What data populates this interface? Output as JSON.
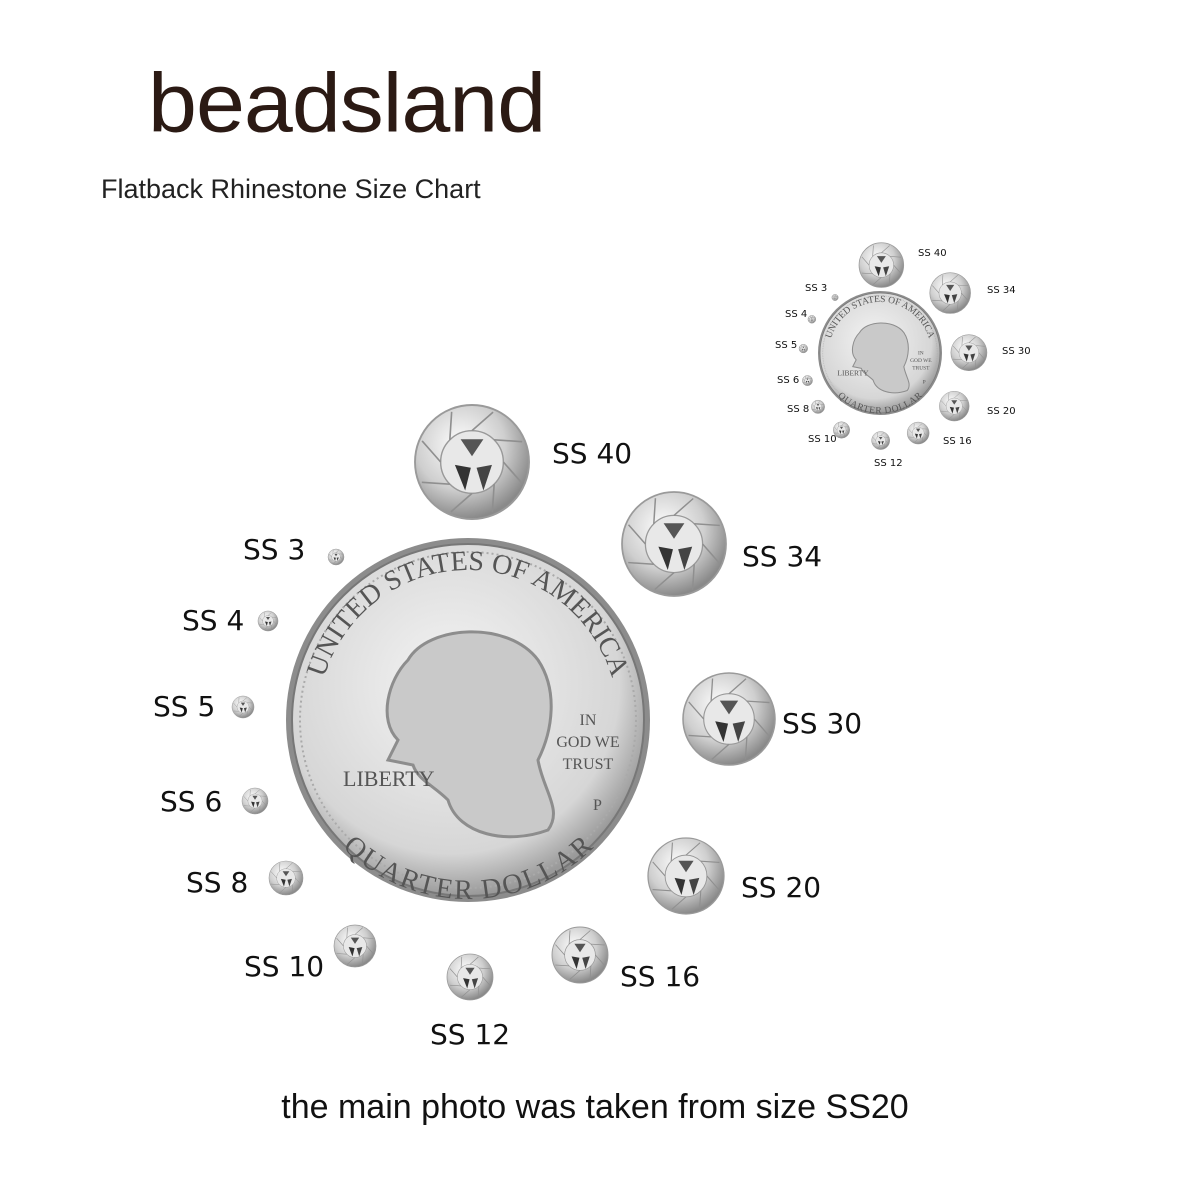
{
  "brand": {
    "logo": "beadsland"
  },
  "subtitle": "Flatback Rhinestone Size Chart",
  "caption": "the main photo was taken from size SS20",
  "coin": {
    "top_text": "UNITED STATES OF AMERICA",
    "left_text": "LIBERTY",
    "motto": [
      "IN",
      "GOD WE",
      "TRUST"
    ],
    "mint_mark": "P",
    "bottom_text": "QUARTER DOLLAR"
  },
  "sizes": [
    {
      "label": "SS 40"
    },
    {
      "label": "SS 34"
    },
    {
      "label": "SS 30"
    },
    {
      "label": "SS 20"
    },
    {
      "label": "SS 16"
    },
    {
      "label": "SS 12"
    },
    {
      "label": "SS 10"
    },
    {
      "label": "SS 8"
    },
    {
      "label": "SS 6"
    },
    {
      "label": "SS 5"
    },
    {
      "label": "SS 4"
    },
    {
      "label": "SS 3"
    }
  ]
}
